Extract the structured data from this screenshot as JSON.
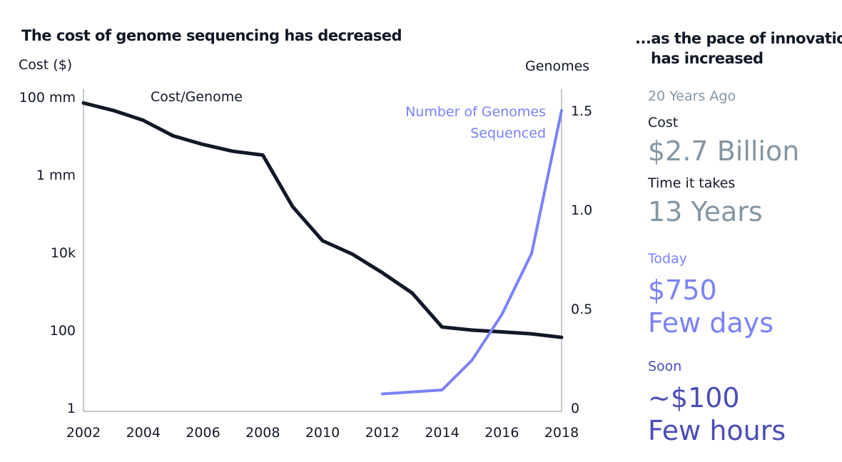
{
  "title": "The cost of genome sequencing has decreased",
  "left_axis_title": "Cost ($)",
  "right_axis_title": "Genomes",
  "series_labels": {
    "cost": "Cost/Genome",
    "genomes_line1": "Number of Genomes",
    "genomes_line2": "Sequenced"
  },
  "colors": {
    "cost": "#111827",
    "genomes": "#7b82f5",
    "gray_text": "#8496a4",
    "soon_text": "#4a4db5"
  },
  "chart_data": {
    "type": "line",
    "x_ticks": [
      "2002",
      "2004",
      "2006",
      "2008",
      "2010",
      "2012",
      "2014",
      "2016",
      "2018"
    ],
    "y_left": {
      "label": "Cost ($)",
      "scale": "log",
      "range": [
        1,
        100000000
      ],
      "ticks": [
        1,
        100,
        10000,
        1000000,
        100000000
      ],
      "tick_labels": [
        "1",
        "100",
        "10k",
        "1 mm",
        "100 mm"
      ]
    },
    "y_right": {
      "label": "Genomes",
      "range": [
        0,
        1.6
      ],
      "ticks": [
        0,
        0.5,
        1.0,
        1.5
      ],
      "tick_labels": [
        "0",
        "0.5",
        "1.0",
        "1.5"
      ]
    },
    "series": [
      {
        "name": "Cost/Genome",
        "axis": "left",
        "x": [
          2002,
          2003,
          2004,
          2005,
          2006,
          2007,
          2008,
          2009,
          2010,
          2011,
          2012,
          2013,
          2014,
          2015,
          2016,
          2017,
          2018
        ],
        "values": [
          70000000,
          45000000,
          25000000,
          10000000,
          6000000,
          4000000,
          3200000,
          150000,
          20000,
          9000,
          3000,
          900,
          120,
          100,
          90,
          80,
          65
        ]
      },
      {
        "name": "Number of Genomes Sequenced",
        "axis": "right",
        "x": [
          2012,
          2013,
          2014,
          2015,
          2016,
          2017,
          2018
        ],
        "values": [
          0.07,
          0.08,
          0.09,
          0.24,
          0.47,
          0.78,
          1.5
        ]
      }
    ]
  },
  "panel": {
    "title_line1": "...as the pace of innovation",
    "title_line2": "has increased",
    "ago_heading": "20 Years Ago",
    "cost_label": "Cost",
    "ago_cost": "$2.7 Billion",
    "time_label": "Time it takes",
    "ago_time": "13 Years",
    "today_heading": "Today",
    "today_cost": "$750",
    "today_time": "Few days",
    "soon_heading": "Soon",
    "soon_cost": "~$100",
    "soon_time": "Few hours"
  }
}
